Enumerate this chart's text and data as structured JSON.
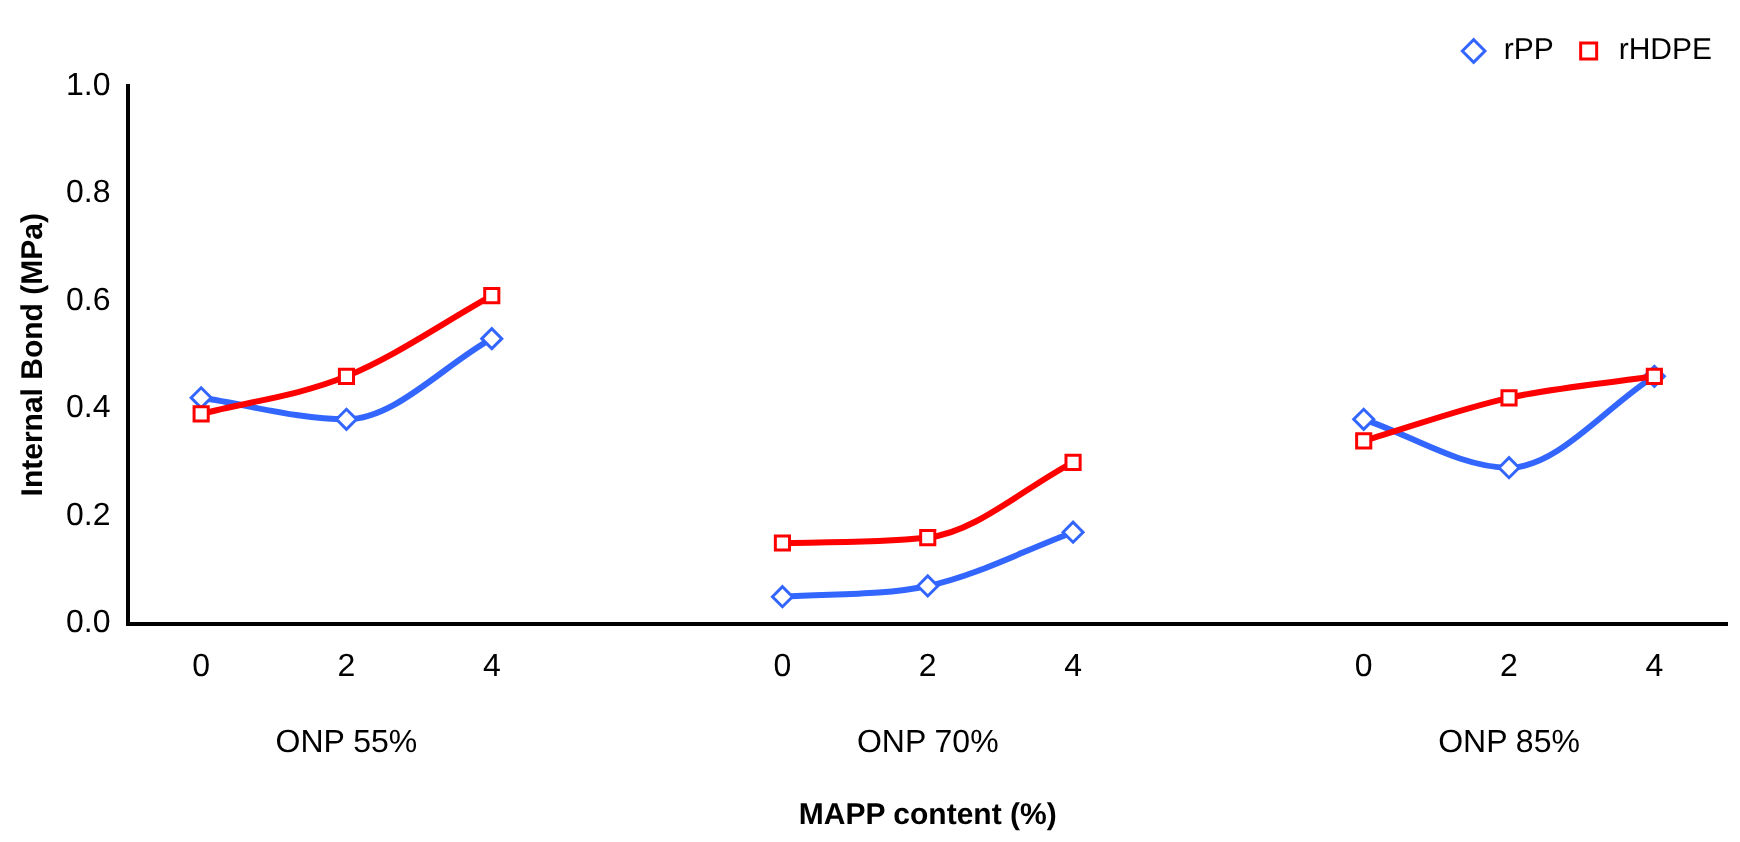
{
  "chart_data": {
    "type": "line",
    "xlabel": "MAPP content (%)",
    "ylabel": "Internal Bond (MPa)",
    "categories": [
      "0",
      "2",
      "4",
      null,
      "0",
      "2",
      "4",
      null,
      "0",
      "2",
      "4"
    ],
    "series": [
      {
        "name": "rPP",
        "color": "#3366ff",
        "marker": "diamond",
        "values": [
          0.42,
          0.38,
          0.53,
          null,
          0.05,
          0.07,
          0.17,
          null,
          0.38,
          0.29,
          0.46
        ]
      },
      {
        "name": "rHDPE",
        "color": "#ff0000",
        "marker": "square",
        "values": [
          0.39,
          0.46,
          0.61,
          null,
          0.15,
          0.16,
          0.3,
          null,
          0.34,
          0.42,
          0.46
        ]
      }
    ],
    "ylim": [
      0,
      1
    ],
    "yticks": [
      {
        "value": 0,
        "label": "0.0"
      },
      {
        "value": 0.2,
        "label": "0.2"
      },
      {
        "value": 0.4,
        "label": "0.4"
      },
      {
        "value": 0.6,
        "label": "0.6"
      },
      {
        "value": 0.8,
        "label": "0.8"
      },
      {
        "value": 1,
        "label": "1.0"
      }
    ],
    "annotations": [
      "ONP 55%",
      "ONP 70%",
      "ONP 85%"
    ],
    "grid": false,
    "legend": "top right"
  }
}
